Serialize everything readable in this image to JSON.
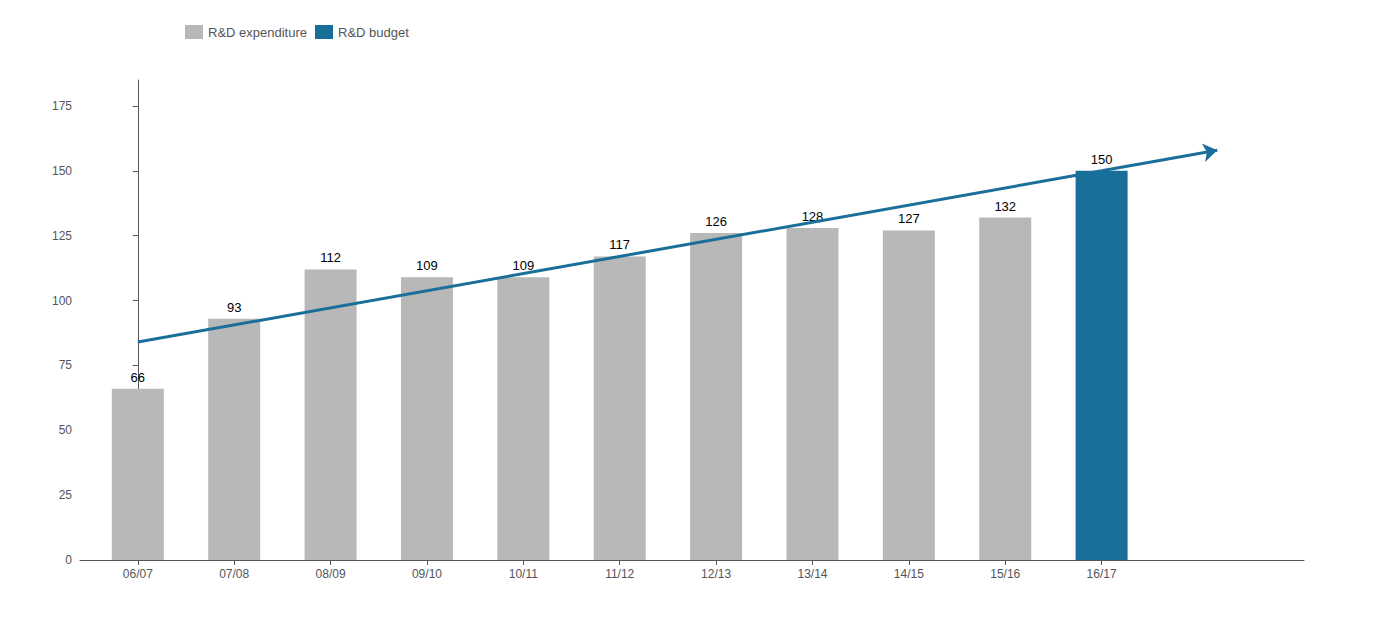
{
  "chart_data": {
    "type": "bar",
    "categories": [
      "06/07",
      "07/08",
      "08/09",
      "09/10",
      "10/11",
      "11/12",
      "12/13",
      "13/14",
      "14/15",
      "15/16",
      "16/17"
    ],
    "series": [
      {
        "name": "R&D expenditure",
        "color": "#b8b8b8",
        "values": [
          66,
          93,
          112,
          109,
          109,
          117,
          126,
          128,
          127,
          132,
          null
        ]
      },
      {
        "name": "R&D budget",
        "color": "#1a6e9a",
        "values": [
          null,
          null,
          null,
          null,
          null,
          null,
          null,
          null,
          null,
          null,
          150
        ]
      }
    ],
    "trend_line": {
      "values": [
        84,
        150
      ],
      "color": "#1a6e9a"
    },
    "ylim": [
      0,
      185
    ],
    "yticks": [
      0,
      25,
      50,
      75,
      100,
      125,
      150,
      175
    ],
    "grid": false,
    "legend": "upper left",
    "data_labels": true
  }
}
